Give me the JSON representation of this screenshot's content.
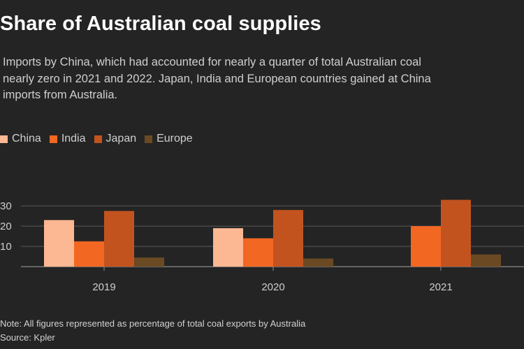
{
  "title": "Share of Australian coal supplies",
  "subtitle_lines": [
    "Imports by China, which had accounted for nearly a quarter of total Australian coal",
    "nearly zero in 2021 and 2022. Japan, India and European countries gained at China",
    "imports from Australia."
  ],
  "footnotes": {
    "note": "Note: All figures represented as percentage of total coal exports by Australia",
    "source": "Source: Kpler"
  },
  "colors": {
    "China": "#fbb893",
    "India": "#f26722",
    "Japan": "#c2531f",
    "Europe": "#6b4a23",
    "background": "#242424",
    "grid": "#5a5a5a"
  },
  "chart_data": {
    "type": "bar",
    "title": "Share of Australian coal supplies",
    "xlabel": "",
    "ylabel": "",
    "categories": [
      "2019",
      "2020",
      "2021"
    ],
    "series": [
      {
        "name": "China",
        "values": [
          23,
          19,
          0
        ]
      },
      {
        "name": "India",
        "values": [
          12.5,
          14,
          20
        ]
      },
      {
        "name": "Japan",
        "values": [
          27.5,
          28,
          33
        ]
      },
      {
        "name": "Europe",
        "values": [
          4.5,
          4,
          6
        ]
      }
    ],
    "yticks": [
      "30",
      "20",
      "10"
    ],
    "ylim": [
      0,
      30
    ],
    "grid": true,
    "legend": "top-left"
  }
}
